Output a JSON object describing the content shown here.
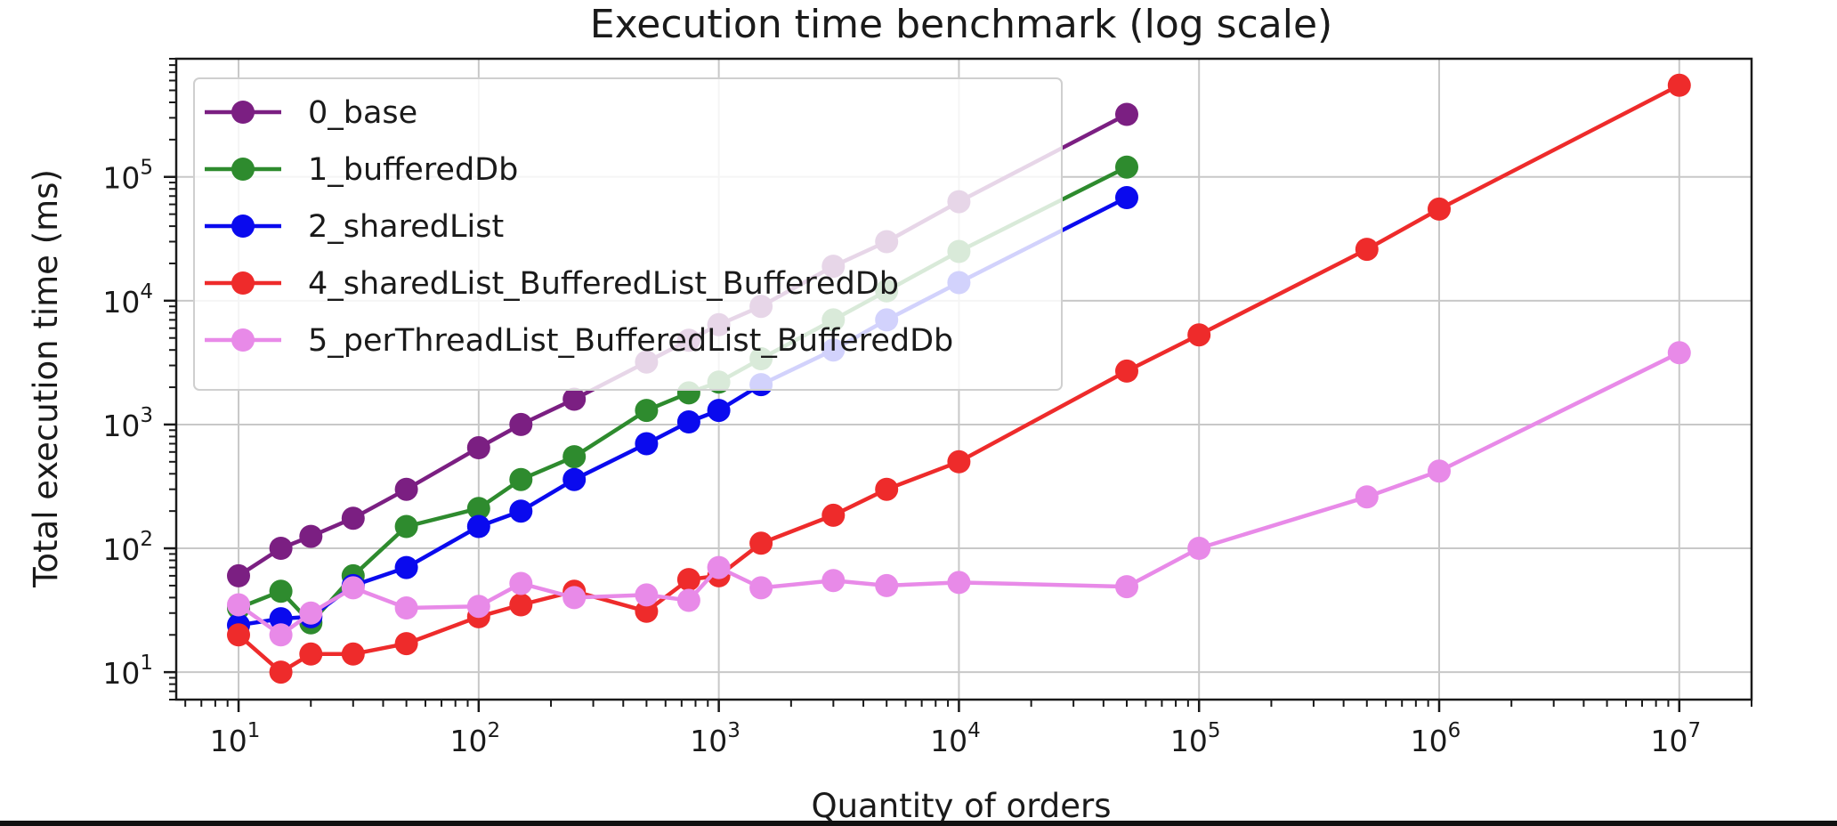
{
  "chart_data": {
    "type": "line",
    "title": "Execution time benchmark (log scale)",
    "xlabel": "Quantity of orders",
    "ylabel": "Total execution time (ms)",
    "xscale": "log",
    "yscale": "log",
    "xlim": [
      5.5,
      20000000
    ],
    "ylim": [
      6,
      900000
    ],
    "grid": true,
    "legend_position": "upper-left",
    "x_ticks": [
      {
        "base": "10",
        "exp": "1",
        "value": 10
      },
      {
        "base": "10",
        "exp": "2",
        "value": 100
      },
      {
        "base": "10",
        "exp": "3",
        "value": 1000
      },
      {
        "base": "10",
        "exp": "4",
        "value": 10000
      },
      {
        "base": "10",
        "exp": "5",
        "value": 100000
      },
      {
        "base": "10",
        "exp": "6",
        "value": 1000000
      },
      {
        "base": "10",
        "exp": "7",
        "value": 10000000
      }
    ],
    "y_ticks": [
      {
        "base": "10",
        "exp": "1",
        "value": 10
      },
      {
        "base": "10",
        "exp": "2",
        "value": 100
      },
      {
        "base": "10",
        "exp": "3",
        "value": 1000
      },
      {
        "base": "10",
        "exp": "4",
        "value": 10000
      },
      {
        "base": "10",
        "exp": "5",
        "value": 100000
      }
    ],
    "series": [
      {
        "name": "0_base",
        "color": "#7b1f82",
        "x": [
          10,
          15,
          20,
          30,
          50,
          100,
          150,
          250,
          500,
          750,
          1000,
          1500,
          3000,
          5000,
          10000,
          50000
        ],
        "y": [
          60,
          100,
          125,
          175,
          300,
          650,
          1000,
          1600,
          3200,
          4800,
          6400,
          9000,
          19000,
          30000,
          63000,
          320000
        ]
      },
      {
        "name": "1_bufferedDb",
        "color": "#2e8b2e",
        "x": [
          10,
          15,
          20,
          30,
          50,
          100,
          150,
          250,
          500,
          750,
          1000,
          1500,
          3000,
          5000,
          10000,
          50000
        ],
        "y": [
          33,
          45,
          25,
          60,
          150,
          210,
          360,
          550,
          1300,
          1800,
          2200,
          3400,
          7000,
          12000,
          25000,
          120000
        ]
      },
      {
        "name": "2_sharedList",
        "color": "#0a0aee",
        "x": [
          10,
          15,
          20,
          30,
          50,
          100,
          150,
          250,
          500,
          750,
          1000,
          1500,
          3000,
          5000,
          10000,
          50000
        ],
        "y": [
          24,
          27,
          28,
          50,
          70,
          150,
          200,
          360,
          700,
          1050,
          1300,
          2100,
          4000,
          7000,
          14000,
          68000
        ]
      },
      {
        "name": "4_sharedList_BufferedList_BufferedDb",
        "color": "#ee2b2b",
        "x": [
          10,
          15,
          20,
          30,
          50,
          100,
          150,
          250,
          500,
          750,
          1000,
          1500,
          3000,
          5000,
          10000,
          50000,
          100000,
          500000,
          1000000,
          10000000
        ],
        "y": [
          20,
          10,
          14,
          14,
          17,
          28,
          35,
          45,
          31,
          56,
          60,
          110,
          185,
          300,
          500,
          2700,
          5300,
          26000,
          55000,
          550000
        ]
      },
      {
        "name": "5_perThreadList_BufferedList_BufferedDb",
        "color": "#e88ae8",
        "x": [
          10,
          15,
          20,
          30,
          50,
          100,
          150,
          250,
          500,
          750,
          1000,
          1500,
          3000,
          5000,
          10000,
          50000,
          100000,
          500000,
          1000000,
          10000000
        ],
        "y": [
          35,
          20,
          30,
          48,
          33,
          34,
          52,
          40,
          42,
          38,
          70,
          48,
          55,
          50,
          53,
          49,
          100,
          260,
          420,
          3800
        ]
      }
    ]
  }
}
